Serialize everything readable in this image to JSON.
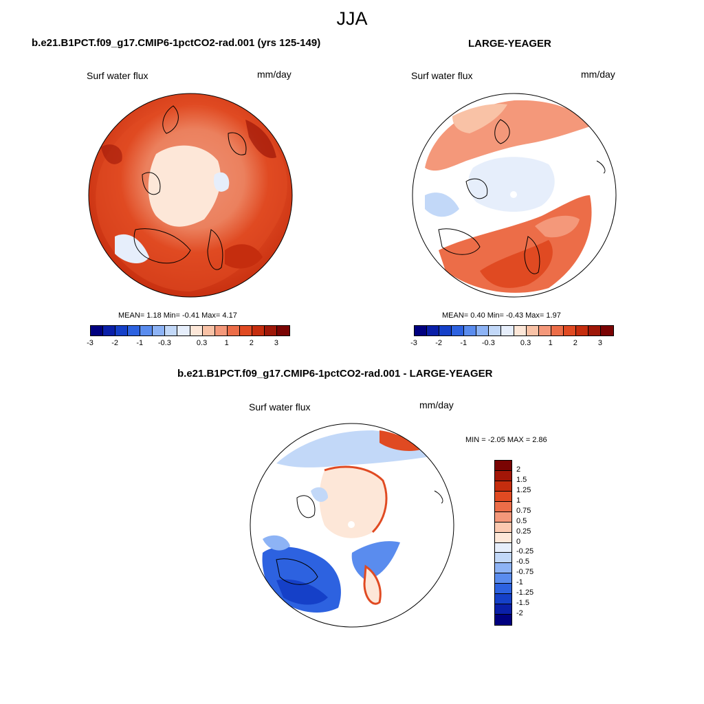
{
  "page": {
    "season": "JJA"
  },
  "panels": {
    "left": {
      "case_title": "b.e21.B1PCT.f09_g17.CMIP6-1pctCO2-rad.001 (yrs 125-149)",
      "variable": "Surf water flux",
      "units": "mm/day",
      "stats": {
        "mean_label": "MEAN=",
        "mean": "1.18",
        "min_label": "Min=",
        "min": "-0.41",
        "max_label": "Max=",
        "max": "4.17"
      }
    },
    "right": {
      "case_title": "LARGE-YEAGER",
      "variable": "Surf water flux",
      "units": "mm/day",
      "stats": {
        "mean_label": "MEAN=",
        "mean": "0.40",
        "min_label": "Min=",
        "min": "-0.43",
        "max_label": "Max=",
        "max": "1.97"
      }
    },
    "diff": {
      "case_title": "b.e21.B1PCT.f09_g17.CMIP6-1pctCO2-rad.001 - LARGE-YEAGER",
      "variable": "Surf water flux",
      "units": "mm/day",
      "stats": {
        "min_label": "MIN =",
        "min": "-2.05",
        "max_label": "MAX =",
        "max": "2.86"
      }
    }
  },
  "colorbar_top": {
    "colors": [
      "#00007f",
      "#0a1fa8",
      "#1540c8",
      "#2d62e0",
      "#5a8cee",
      "#8db3f5",
      "#c2d8f8",
      "#e6eefb",
      "#fde7d8",
      "#f9c2a6",
      "#f4987a",
      "#ec6d48",
      "#e04a22",
      "#c52d0e",
      "#9e1708",
      "#7a0403"
    ],
    "tick_labels": [
      "-3",
      "-2",
      "-1",
      "-0.3",
      "0.3",
      "1",
      "2",
      "3"
    ]
  },
  "colorbar_diff": {
    "colors_top_to_bottom": [
      "#7a0403",
      "#a31607",
      "#c52d0e",
      "#e04a22",
      "#ec6d48",
      "#f4987a",
      "#fbc9b0",
      "#fde7d8",
      "#e6eefb",
      "#c2d8f8",
      "#8db3f5",
      "#5a8cee",
      "#2d62e0",
      "#1540c8",
      "#0a1fa8",
      "#00007f"
    ],
    "tick_labels": [
      "2",
      "1.5",
      "1.25",
      "1",
      "0.75",
      "0.5",
      "0.25",
      "0",
      "-0.25",
      "-0.5",
      "-0.75",
      "-1",
      "-1.25",
      "-1.5",
      "-2"
    ]
  }
}
